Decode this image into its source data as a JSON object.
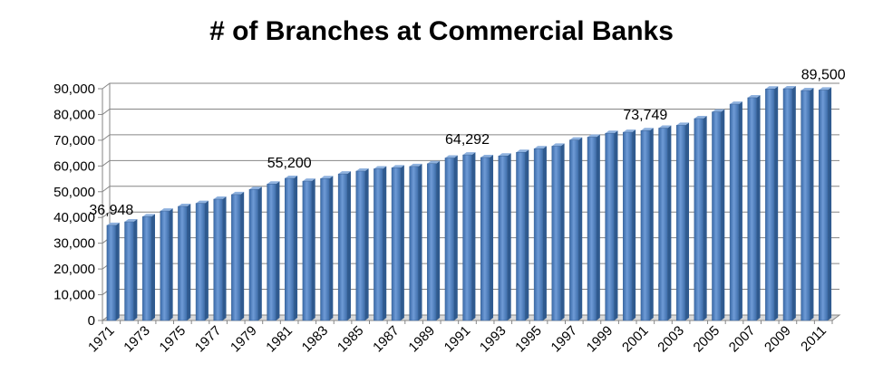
{
  "chart_data": {
    "type": "bar",
    "title": "# of Branches at Commercial Banks",
    "xlabel": "",
    "ylabel": "",
    "ylim": [
      0,
      90000
    ],
    "y_ticks": [
      "0",
      "10,000",
      "20,000",
      "30,000",
      "40,000",
      "50,000",
      "60,000",
      "70,000",
      "80,000",
      "90,000"
    ],
    "grid": true,
    "legend": "none",
    "bar_color": "#4F81BD",
    "categories": [
      "1971",
      "1972",
      "1973",
      "1974",
      "1975",
      "1976",
      "1977",
      "1978",
      "1979",
      "1980",
      "1981",
      "1982",
      "1983",
      "1984",
      "1985",
      "1986",
      "1987",
      "1988",
      "1989",
      "1990",
      "1991",
      "1992",
      "1993",
      "1994",
      "1995",
      "1996",
      "1997",
      "1998",
      "1999",
      "2000",
      "2001",
      "2002",
      "2003",
      "2004",
      "2005",
      "2006",
      "2007",
      "2008",
      "2009",
      "2010",
      "2011"
    ],
    "x_tick_labels": [
      "1971",
      "1973",
      "1975",
      "1977",
      "1979",
      "1981",
      "1983",
      "1985",
      "1987",
      "1989",
      "1991",
      "1993",
      "1995",
      "1997",
      "1999",
      "2001",
      "2003",
      "2005",
      "2007",
      "2009",
      "2011"
    ],
    "values": [
      36948,
      38300,
      40300,
      42500,
      44300,
      45500,
      47100,
      48900,
      50900,
      53000,
      55200,
      54100,
      55100,
      56900,
      58000,
      58900,
      59300,
      59800,
      60900,
      63100,
      64292,
      63300,
      63900,
      65300,
      66700,
      67700,
      70100,
      71200,
      72700,
      73100,
      73749,
      74700,
      75800,
      78400,
      81000,
      84000,
      86500,
      89900,
      90000,
      89300,
      89500
    ],
    "data_labels": [
      {
        "category": "1971",
        "text": "36,948"
      },
      {
        "category": "1981",
        "text": "55,200"
      },
      {
        "category": "1991",
        "text": "64,292"
      },
      {
        "category": "2001",
        "text": "73,749"
      },
      {
        "category": "2011",
        "text": "89,500"
      }
    ]
  }
}
